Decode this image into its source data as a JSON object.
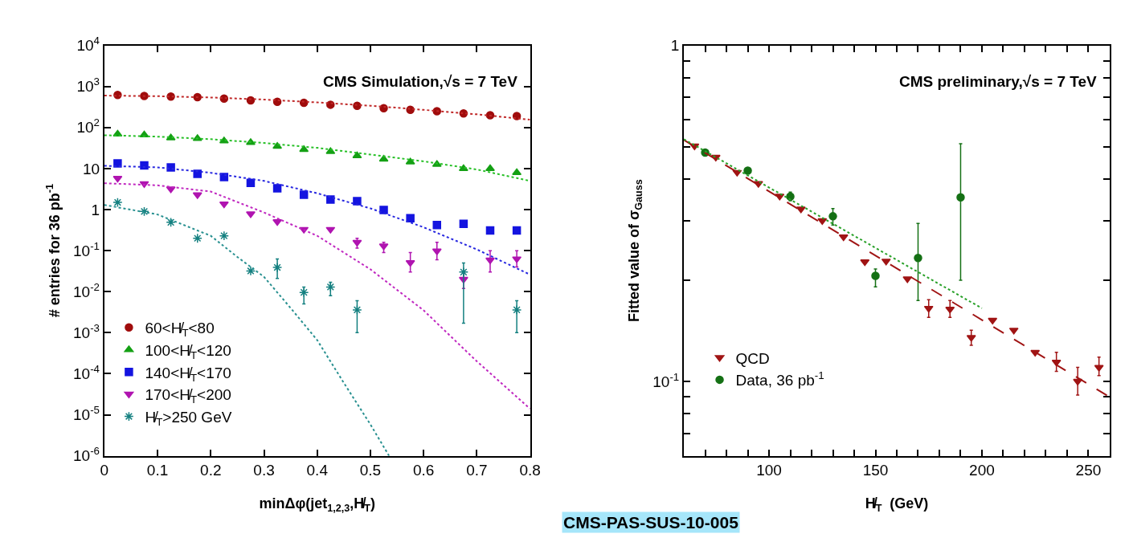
{
  "chart_data": [
    {
      "type": "scatter",
      "xlabel": "minΔφ(jet$_{1,2,3}$,H̸$_{T}$)",
      "ylabel": "# entries for 36 pb$^{-1}$",
      "annotations": [
        "CMS Simulation,√s = 7 TeV"
      ],
      "log": "y",
      "xlim": [
        0,
        0.8
      ],
      "ylim": [
        1e-06,
        10000
      ],
      "xticks": [
        0,
        0.1,
        0.2,
        0.3,
        0.4,
        0.5,
        0.6,
        0.7,
        0.8
      ],
      "yticks": [
        {
          "value": 1e-06,
          "label": "10$^{-6}$"
        },
        {
          "value": 1e-05,
          "label": "10$^{-5}$"
        },
        {
          "value": 0.0001,
          "label": "10$^{-4}$"
        },
        {
          "value": 0.001,
          "label": "10$^{-3}$"
        },
        {
          "value": 0.01,
          "label": "10$^{-2}$"
        },
        {
          "value": 0.1,
          "label": "10$^{-1}$"
        },
        1,
        10,
        {
          "value": 100,
          "label": "10$^{2}$"
        },
        {
          "value": 1000,
          "label": "10$^{3}$"
        },
        {
          "value": 10000,
          "label": "10$^{4}$"
        }
      ],
      "legend": "bottom left",
      "series": [
        {
          "name": "60<H̸$_{T}$<80",
          "marker": "circle",
          "color": "#a00c0c",
          "x": [
            0.025,
            0.075,
            0.125,
            0.175,
            0.225,
            0.275,
            0.325,
            0.375,
            0.425,
            0.475,
            0.525,
            0.575,
            0.625,
            0.675,
            0.725,
            0.775
          ],
          "values": [
            620,
            590,
            570,
            550,
            510,
            460,
            425,
            400,
            360,
            340,
            295,
            270,
            250,
            220,
            200,
            190
          ]
        },
        {
          "name": "100<H̸$_{T}$<120",
          "marker": "triangle",
          "color": "#14a014",
          "x": [
            0.025,
            0.075,
            0.125,
            0.175,
            0.225,
            0.275,
            0.325,
            0.375,
            0.425,
            0.475,
            0.525,
            0.575,
            0.625,
            0.675,
            0.725,
            0.775
          ],
          "values": [
            69,
            66,
            56,
            54,
            47,
            43,
            35,
            29,
            26,
            20.5,
            17,
            14.5,
            12.6,
            10,
            10,
            8
          ]
        },
        {
          "name": "140<H̸$_{T}$<170",
          "marker": "square",
          "color": "#1414e0",
          "x": [
            0.025,
            0.075,
            0.125,
            0.175,
            0.225,
            0.275,
            0.325,
            0.375,
            0.425,
            0.475,
            0.525,
            0.575,
            0.625,
            0.675,
            0.725,
            0.775
          ],
          "values": [
            13.4,
            12,
            10.7,
            7.4,
            6.2,
            4.5,
            3.3,
            2.3,
            1.75,
            1.6,
            0.98,
            0.62,
            0.42,
            0.45,
            0.31,
            0.31
          ]
        },
        {
          "name": "170<H̸$_{T}$<200",
          "marker": "triangle-down",
          "color": "#b014b0",
          "x": [
            0.025,
            0.075,
            0.125,
            0.175,
            0.225,
            0.275,
            0.325,
            0.375,
            0.425,
            0.475,
            0.525,
            0.575,
            0.625,
            0.675,
            0.725,
            0.775
          ],
          "values": [
            5.8,
            4.3,
            3.2,
            2.3,
            1.37,
            0.79,
            0.51,
            0.33,
            0.33,
            0.16,
            0.13,
            0.051,
            0.098,
            0.02,
            0.059,
            0.063
          ],
          "errors": [
            null,
            null,
            null,
            null,
            null,
            null,
            null,
            null,
            null,
            [
              0.115,
              0.2
            ],
            [
              0.09,
              0.16
            ],
            [
              0.03,
              0.09
            ],
            [
              0.06,
              0.16
            ],
            [
              0.012,
              0.03
            ],
            [
              0.03,
              0.1
            ],
            [
              0.04,
              0.1
            ]
          ]
        },
        {
          "name": "H̸$_{T}$>250 GeV",
          "marker": "cross",
          "color": "#148080",
          "x": [
            0.025,
            0.075,
            0.125,
            0.175,
            0.225,
            0.275,
            0.325,
            0.375,
            0.425,
            0.475,
            0.525,
            0.575,
            0.625,
            0.675,
            0.725,
            0.775
          ],
          "values": [
            1.5,
            0.9,
            0.49,
            0.2,
            0.23,
            0.032,
            0.039,
            0.0096,
            0.013,
            0.0036,
            null,
            null,
            null,
            0.03,
            null,
            0.0036
          ],
          "errors": [
            null,
            null,
            null,
            null,
            null,
            null,
            [
              0.021,
              0.063
            ],
            [
              0.005,
              0.013
            ],
            [
              0.008,
              0.017
            ],
            [
              0.001,
              0.006
            ],
            null,
            null,
            null,
            [
              0.0017,
              0.05
            ],
            null,
            [
              0.001,
              0.006
            ]
          ]
        },
        {
          "type": "line",
          "line_style": "dotted",
          "color": "#c02828",
          "x": [
            0,
            0.1,
            0.2,
            0.3,
            0.4,
            0.5,
            0.6,
            0.7,
            0.8
          ],
          "values": [
            600,
            580,
            540,
            480,
            410,
            340,
            270,
            210,
            155
          ]
        },
        {
          "type": "line",
          "line_style": "dotted",
          "color": "#28c028",
          "x": [
            0,
            0.1,
            0.2,
            0.3,
            0.4,
            0.5,
            0.6,
            0.7,
            0.8
          ],
          "values": [
            65,
            60,
            52,
            42,
            32,
            22,
            15,
            9.5,
            5
          ]
        },
        {
          "type": "line",
          "line_style": "dotted",
          "color": "#2828e0",
          "x": [
            0,
            0.1,
            0.2,
            0.3,
            0.4,
            0.5,
            0.6,
            0.7,
            0.8
          ],
          "values": [
            11.7,
            10.7,
            7.9,
            5.0,
            2.5,
            1.07,
            0.37,
            0.107,
            0.026
          ]
        },
        {
          "type": "line",
          "line_style": "dotted",
          "color": "#c028c0",
          "x": [
            0,
            0.1,
            0.2,
            0.3,
            0.4,
            0.5,
            0.6,
            0.7,
            0.8
          ],
          "values": [
            4.4,
            3.9,
            2.75,
            0.85,
            0.23,
            0.035,
            0.0035,
            0.0002,
            1.4e-05
          ]
        },
        {
          "type": "line",
          "line_style": "dotted",
          "color": "#289090",
          "x": [
            0,
            0.1,
            0.2,
            0.25,
            0.3,
            0.35,
            0.4,
            0.45,
            0.5,
            0.535
          ],
          "values": [
            1.3,
            0.76,
            0.23,
            0.07,
            0.023,
            0.004,
            0.00066,
            6e-05,
            5.8e-06,
            1e-06
          ]
        }
      ]
    },
    {
      "type": "scatter",
      "xlabel": "H̸$_{T}$  (GeV)",
      "ylabel": "Fitted value of σ$_{Gauss}$",
      "annotations": [
        "CMS preliminary,√s = 7 TeV",
        "CMS-PAS-SUS-10-005"
      ],
      "log": "y",
      "xlim": [
        60,
        260
      ],
      "ylim": [
        0.06,
        1
      ],
      "xticks": [
        {
          "value": 70,
          "label": null
        },
        {
          "value": 80,
          "label": null
        },
        {
          "value": 90,
          "label": null
        },
        100,
        {
          "value": 110,
          "label": null
        },
        {
          "value": 120,
          "label": null
        },
        {
          "value": 130,
          "label": null
        },
        {
          "value": 140,
          "label": null
        },
        150,
        {
          "value": 160,
          "label": null
        },
        {
          "value": 170,
          "label": null
        },
        {
          "value": 180,
          "label": null
        },
        {
          "value": 190,
          "label": null
        },
        200,
        {
          "value": 210,
          "label": null
        },
        {
          "value": 220,
          "label": null
        },
        {
          "value": 230,
          "label": null
        },
        {
          "value": 240,
          "label": null
        },
        250
      ],
      "yticks": [
        {
          "value": 0.06,
          "label": null
        },
        {
          "value": 0.07,
          "label": null
        },
        {
          "value": 0.08,
          "label": null
        },
        {
          "value": 0.09,
          "label": null
        },
        {
          "value": 0.1,
          "label": "10$^{-1}$"
        },
        {
          "value": 0.2,
          "label": null
        },
        {
          "value": 0.3,
          "label": null
        },
        {
          "value": 0.4,
          "label": null
        },
        {
          "value": 0.5,
          "label": null
        },
        {
          "value": 0.6,
          "label": null
        },
        {
          "value": 0.7,
          "label": null
        },
        {
          "value": 0.8,
          "label": null
        },
        {
          "value": 0.9,
          "label": null
        },
        1
      ],
      "legend": "bottom left",
      "series": [
        {
          "name": "QCD",
          "marker": "triangle-down",
          "color": "#a01414",
          "x": [
            65,
            75,
            85,
            95,
            105,
            115,
            125,
            135,
            145,
            155,
            165,
            175,
            185,
            195,
            205,
            215,
            225,
            235,
            245,
            255
          ],
          "values": [
            0.502,
            0.465,
            0.419,
            0.388,
            0.356,
            0.326,
            0.301,
            0.269,
            0.227,
            0.228,
            0.202,
            0.165,
            0.164,
            0.135,
            0.152,
            0.142,
            0.122,
            0.114,
            0.1,
            0.11
          ],
          "errors": [
            null,
            null,
            null,
            null,
            null,
            null,
            null,
            null,
            null,
            null,
            null,
            [
              0.155,
              0.175
            ],
            [
              0.155,
              0.174
            ],
            [
              0.128,
              0.142
            ],
            null,
            null,
            null,
            [
              0.107,
              0.122
            ],
            [
              0.091,
              0.11
            ],
            [
              0.104,
              0.118
            ]
          ]
        },
        {
          "name": "Data, 36 pb$^{-1}$",
          "marker": "circle",
          "color": "#147014",
          "x": [
            70,
            90,
            110,
            130,
            150,
            170,
            190
          ],
          "values": [
            0.48,
            0.424,
            0.355,
            0.31,
            0.206,
            0.233,
            0.353
          ],
          "errors": [
            null,
            null,
            [
              0.345,
              0.366
            ],
            [
              0.292,
              0.327
            ],
            [
              0.191,
              0.216
            ],
            [
              0.174,
              0.295
            ],
            [
              0.2,
              0.51
            ]
          ]
        },
        {
          "type": "line",
          "line_style": "dashed",
          "color": "#a01414",
          "x": [
            60,
            260
          ],
          "values": [
            0.523,
            0.0898
          ]
        },
        {
          "type": "line",
          "line_style": "dotted",
          "color": "#28a028",
          "x": [
            60,
            200
          ],
          "values": [
            0.526,
            0.165
          ]
        }
      ]
    }
  ]
}
